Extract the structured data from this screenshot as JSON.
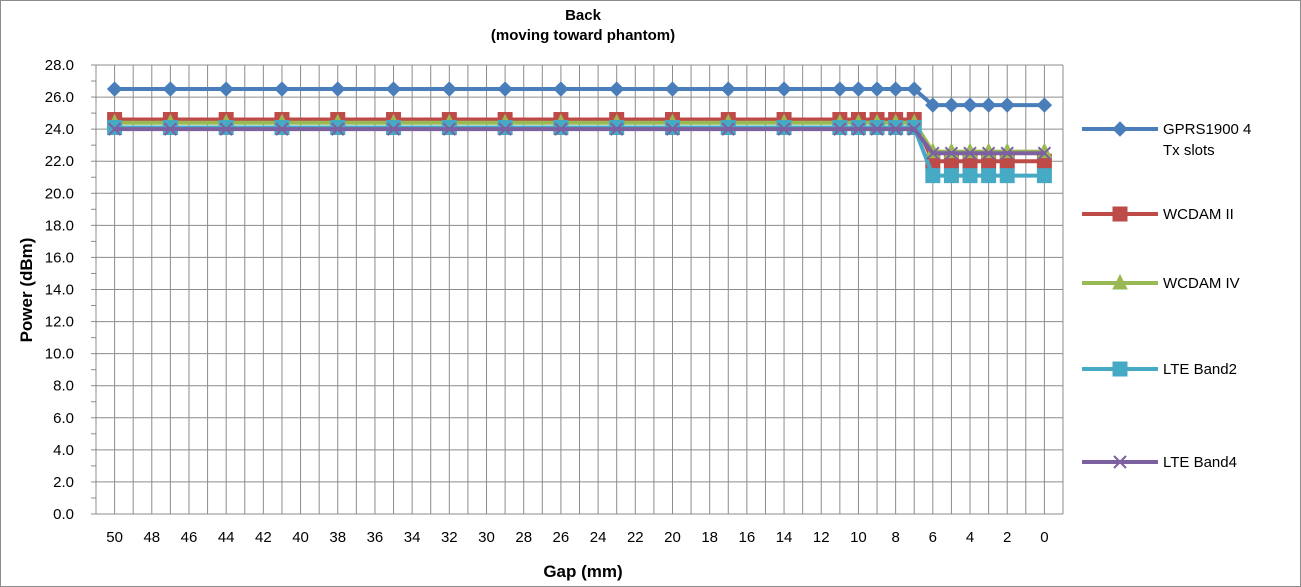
{
  "chart_data": {
    "type": "line",
    "title": "Back",
    "subtitle": "(moving toward phantom)",
    "xlabel": "Gap (mm)",
    "ylabel": "Power (dBm)",
    "ylim": [
      0,
      28
    ],
    "y_ticks": [
      "0.0",
      "2.0",
      "4.0",
      "6.0",
      "8.0",
      "10.0",
      "12.0",
      "14.0",
      "16.0",
      "18.0",
      "20.0",
      "22.0",
      "24.0",
      "26.0",
      "28.0"
    ],
    "x": [
      50,
      47,
      44,
      41,
      38,
      35,
      32,
      29,
      26,
      23,
      20,
      17,
      14,
      11,
      10,
      9,
      8,
      7,
      6,
      5,
      4,
      3,
      2,
      0
    ],
    "x_tick_labels": [
      "50",
      "48",
      "46",
      "44",
      "42",
      "40",
      "38",
      "36",
      "34",
      "32",
      "30",
      "28",
      "26",
      "24",
      "22",
      "20",
      "18",
      "16",
      "14",
      "12",
      "10",
      "8",
      "6",
      "4",
      "2",
      "0"
    ],
    "grid": true,
    "legend_position": "right",
    "series": [
      {
        "name": "GPRS1900  4 Tx slots",
        "color": "#4a7ebb",
        "marker": "diamond",
        "values": [
          26.5,
          26.5,
          26.5,
          26.5,
          26.5,
          26.5,
          26.5,
          26.5,
          26.5,
          26.5,
          26.5,
          26.5,
          26.5,
          26.5,
          26.5,
          26.5,
          26.5,
          26.5,
          25.5,
          25.5,
          25.5,
          25.5,
          25.5,
          25.5
        ]
      },
      {
        "name": "WCDAM II",
        "color": "#be4b48",
        "marker": "square",
        "values": [
          24.6,
          24.6,
          24.6,
          24.6,
          24.6,
          24.6,
          24.6,
          24.6,
          24.6,
          24.6,
          24.6,
          24.6,
          24.6,
          24.6,
          24.6,
          24.6,
          24.6,
          24.6,
          22.0,
          22.0,
          22.0,
          22.0,
          22.0,
          22.0
        ]
      },
      {
        "name": "WCDAM IV",
        "color": "#98b954",
        "marker": "triangle",
        "values": [
          24.4,
          24.4,
          24.4,
          24.4,
          24.4,
          24.4,
          24.4,
          24.4,
          24.4,
          24.4,
          24.4,
          24.4,
          24.4,
          24.4,
          24.4,
          24.4,
          24.4,
          24.4,
          22.6,
          22.6,
          22.6,
          22.6,
          22.6,
          22.6
        ]
      },
      {
        "name": "LTE Band2",
        "color": "#46aac5",
        "marker": "square",
        "values": [
          24.1,
          24.1,
          24.1,
          24.1,
          24.1,
          24.1,
          24.1,
          24.1,
          24.1,
          24.1,
          24.1,
          24.1,
          24.1,
          24.1,
          24.1,
          24.1,
          24.1,
          24.1,
          21.1,
          21.1,
          21.1,
          21.1,
          21.1,
          21.1
        ]
      },
      {
        "name": "LTE Band4",
        "color": "#7d60a0",
        "marker": "x",
        "values": [
          24.0,
          24.0,
          24.0,
          24.0,
          24.0,
          24.0,
          24.0,
          24.0,
          24.0,
          24.0,
          24.0,
          24.0,
          24.0,
          24.0,
          24.0,
          24.0,
          24.0,
          24.0,
          22.5,
          22.5,
          22.5,
          22.5,
          22.5,
          22.5
        ]
      }
    ]
  }
}
